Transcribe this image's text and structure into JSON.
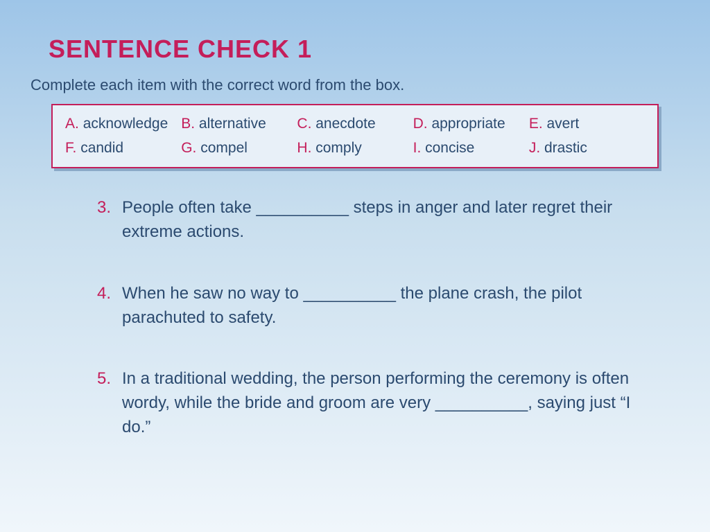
{
  "title": "SENTENCE CHECK 1",
  "instructions": "Complete each item with the correct word from the box.",
  "colors": {
    "accent": "#c41e5a",
    "body_text": "#2b4a6f",
    "bg_top": "#9ec5e8",
    "bg_bottom": "#f0f6fb",
    "box_bg": "#e8f0f8",
    "box_shadow": "#8aa9c7"
  },
  "typography": {
    "title_fontsize": 36,
    "instructions_fontsize": 22,
    "wordbox_fontsize": 21,
    "question_fontsize": 24,
    "font_family": "Arial"
  },
  "word_box": {
    "rows": [
      [
        {
          "letter": "A.",
          "word": "acknowledge"
        },
        {
          "letter": "B.",
          "word": "alternative"
        },
        {
          "letter": "C.",
          "word": "anecdote"
        },
        {
          "letter": "D.",
          "word": "appropriate"
        },
        {
          "letter": "E.",
          "word": "avert"
        }
      ],
      [
        {
          "letter": "F.",
          "word": "candid"
        },
        {
          "letter": "G.",
          "word": "compel"
        },
        {
          "letter": "H.",
          "word": "comply"
        },
        {
          "letter": "I.",
          "word": "concise"
        },
        {
          "letter": "J.",
          "word": "drastic"
        }
      ]
    ]
  },
  "questions": [
    {
      "number": "3.",
      "text": "People often take __________ steps in anger and later regret their extreme actions."
    },
    {
      "number": "4.",
      "text": "When he saw no way to __________ the plane crash, the pilot parachuted to safety."
    },
    {
      "number": "5.",
      "text": "In a traditional wedding, the person performing the ceremony is often wordy, while the bride and groom are very __________, saying just “I do.”"
    }
  ]
}
